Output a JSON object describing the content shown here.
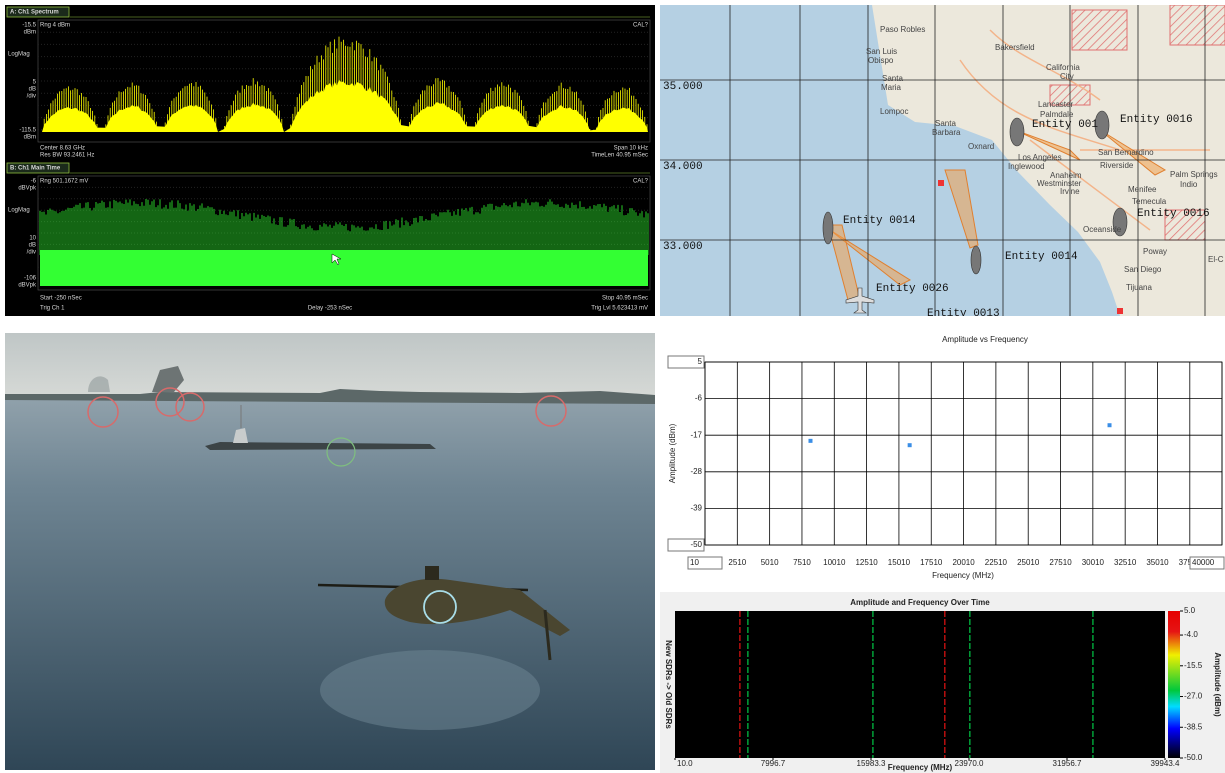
{
  "spectrum": {
    "panels": [
      {
        "tab": "A: Ch1 Spectrum",
        "range": "Rng 4 dBm",
        "cal": "CAL?",
        "top_scale": "-15.5",
        "top_unit": "dBm",
        "format": "LogMag",
        "scale": "5",
        "scale_unit": [
          "dB",
          "/div"
        ],
        "bottom_scale": "-115.5",
        "bottom_unit": "dBm",
        "footer_left": [
          "Center 8.63 GHz",
          "Res BW 93.2461 Hz"
        ],
        "footer_right": [
          "Span 10 kHz",
          "TimeLen 40.95 mSec"
        ]
      },
      {
        "tab": "B: Ch1 Main Time",
        "range": "Rng 501.1672 mV",
        "cal": "CAL?",
        "top_scale": "-6",
        "top_unit": "dBVpk",
        "format": "LogMag",
        "scale": "10",
        "scale_unit": [
          "dB",
          "/div"
        ],
        "bottom_scale": "-106",
        "bottom_unit": "dBVpk",
        "footer_left": [
          "Start -250 nSec",
          "Trig Ch 1"
        ],
        "footer_center": "Delay -253 nSec",
        "footer_right": [
          "Stop 40.95 mSec",
          "Trig Lvl 5.623413 mV"
        ]
      }
    ]
  },
  "map": {
    "latitude_labels": [
      "35.000",
      "34.000",
      "33.000"
    ],
    "places": [
      "Paso Robles",
      "Bakersfield",
      "San Luis",
      "Obispo",
      "California",
      "City",
      "Santa",
      "Maria",
      "Lompoc",
      "Lancaster",
      "Palmdale",
      "Santa",
      "Barbara",
      "Oxnard",
      "Los Angeles",
      "San Bernardino",
      "Inglewood",
      "Riverside",
      "Anaheim",
      "Westminster",
      "Irvine",
      "Palm Springs",
      "Indio",
      "Menifee",
      "Temecula",
      "Oceanside",
      "Poway",
      "San Diego",
      "Tijuana",
      "El-C"
    ],
    "entities": [
      "Entity 0016",
      "Entity 001",
      "Entity 0014",
      "Entity 0016",
      "Entity 0014",
      "Entity 0026",
      "Entity 0013"
    ]
  },
  "chart_data": [
    {
      "type": "scatter",
      "title": "Amplitude vs Frequency",
      "x_label": "Frequency (MHz)",
      "y_label": "Amplitude (dBm)",
      "x": [
        8170,
        15840,
        31300
      ],
      "values": [
        -18.7,
        -20,
        -14
      ],
      "color": "#3a8ee6",
      "xlim": [
        10,
        40000
      ],
      "ylim": [
        -50,
        5
      ],
      "xticks": [
        10,
        2510,
        5010,
        7510,
        10010,
        12510,
        15010,
        17510,
        20010,
        22510,
        25010,
        27510,
        30010,
        32510,
        35010,
        37510,
        40000
      ],
      "yticks": [
        5,
        -6,
        -17,
        -28,
        -39,
        -50
      ],
      "grid": true
    },
    {
      "type": "waterfall",
      "title": "Amplitude and Frequency Over Time",
      "x_label": "Frequency (MHz)",
      "y_label": "New SDRs -> Old SDRs",
      "colorbar_label": "Amplitude (dBm)",
      "x": [
        5300,
        5950,
        16140,
        22000,
        24040,
        34070
      ],
      "values": [
        -2,
        -25,
        -25,
        -2,
        -25,
        -25
      ],
      "xlim": [
        10,
        39943.4
      ],
      "xticks": [
        {
          "value": 10,
          "label": "10.0"
        },
        7996.7,
        15983.3,
        {
          "value": 23970,
          "label": "23970.0"
        },
        31956.7,
        39943.4
      ],
      "zlim": [
        -50,
        5
      ],
      "zticks": [
        {
          "value": 5,
          "label": "5.0"
        },
        {
          "value": -4,
          "label": "-4.0"
        },
        -15.5,
        {
          "value": -27,
          "label": "-27.0"
        },
        -38.5,
        {
          "value": -50,
          "label": "-50.0"
        }
      ]
    }
  ]
}
